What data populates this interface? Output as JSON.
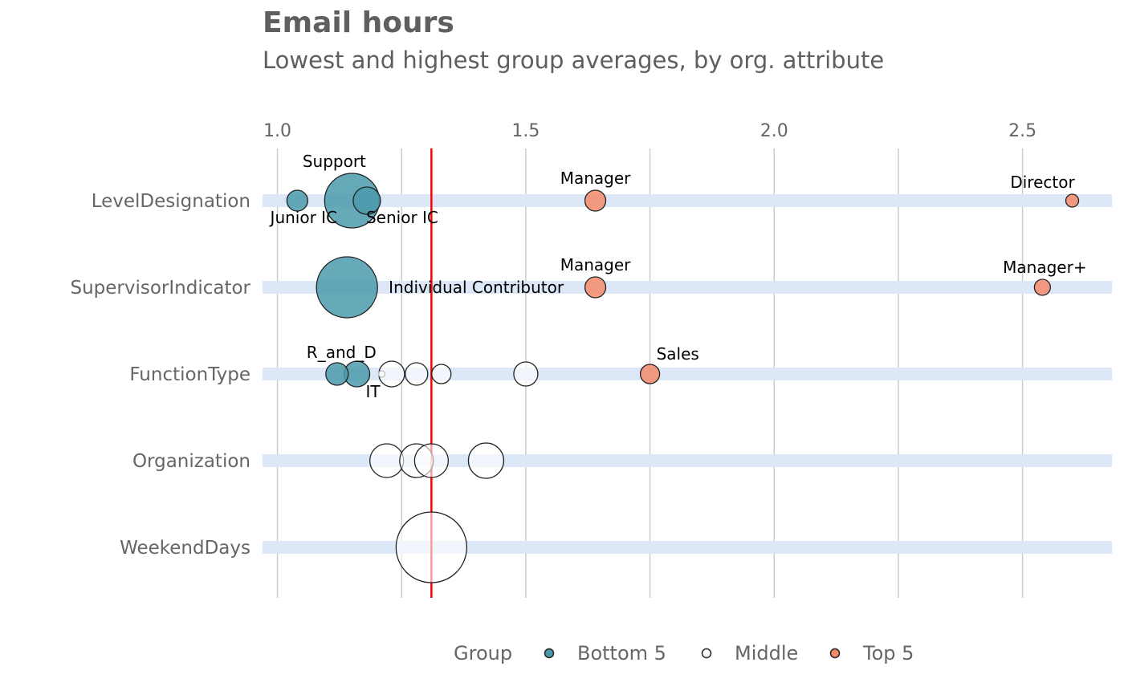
{
  "chart_data": {
    "type": "scatter",
    "title": "Email hours",
    "subtitle": "Lowest and highest group averages, by org. attribute",
    "xlim": [
      0.97,
      2.68
    ],
    "x_ticks": [
      1.0,
      1.5,
      2.0,
      2.5
    ],
    "x_tick_labels": [
      "1.0",
      "1.5",
      "2.0",
      "2.5"
    ],
    "grid": true,
    "reference_line": 1.31,
    "reference_color": "#ff0000",
    "categories": [
      "LevelDesignation",
      "SupervisorIndicator",
      "FunctionType",
      "Organization",
      "WeekendDays"
    ],
    "legend": {
      "title": "Group",
      "position": "bottom",
      "items": [
        {
          "label": "Bottom 5",
          "color": "#4b9aab"
        },
        {
          "label": "Middle",
          "color": "#ffffff"
        },
        {
          "label": "Top 5",
          "color": "#f58a6b"
        }
      ]
    },
    "colors": {
      "Bottom 5": "#4b9aab",
      "Middle": "#ffffff",
      "Top 5": "#f58a6b",
      "band": "#dce8f7"
    },
    "points": [
      {
        "category": "LevelDesignation",
        "x": 1.04,
        "size": 13,
        "group": "Bottom 5",
        "label": "Junior IC",
        "label_pos": "below"
      },
      {
        "category": "LevelDesignation",
        "x": 1.15,
        "size": 34,
        "group": "Bottom 5",
        "label": "Support",
        "label_pos": "above"
      },
      {
        "category": "LevelDesignation",
        "x": 1.18,
        "size": 17,
        "group": "Bottom 5",
        "label": "Senior IC",
        "label_pos": "below-right"
      },
      {
        "category": "LevelDesignation",
        "x": 1.64,
        "size": 13,
        "group": "Top 5",
        "label": "Manager",
        "label_pos": "above"
      },
      {
        "category": "LevelDesignation",
        "x": 2.6,
        "size": 8,
        "group": "Top 5",
        "label": "Director",
        "label_pos": "above"
      },
      {
        "category": "SupervisorIndicator",
        "x": 1.14,
        "size": 38,
        "group": "Bottom 5",
        "label": "Individual Contributor",
        "label_pos": "right"
      },
      {
        "category": "SupervisorIndicator",
        "x": 1.64,
        "size": 13,
        "group": "Top 5",
        "label": "Manager",
        "label_pos": "above"
      },
      {
        "category": "SupervisorIndicator",
        "x": 2.54,
        "size": 10,
        "group": "Top 5",
        "label": "Manager+",
        "label_pos": "above"
      },
      {
        "category": "FunctionType",
        "x": 1.12,
        "size": 14,
        "group": "Bottom 5",
        "label": "R_and_D",
        "label_pos": "above-left"
      },
      {
        "category": "FunctionType",
        "x": 1.16,
        "size": 16,
        "group": "Bottom 5",
        "label": "IT",
        "label_pos": "below-right"
      },
      {
        "category": "FunctionType",
        "x": 1.21,
        "size": 4,
        "group": "Middle",
        "label": "",
        "label_pos": ""
      },
      {
        "category": "FunctionType",
        "x": 1.23,
        "size": 16,
        "group": "Middle",
        "label": "",
        "label_pos": ""
      },
      {
        "category": "FunctionType",
        "x": 1.28,
        "size": 14,
        "group": "Middle",
        "label": "",
        "label_pos": ""
      },
      {
        "category": "FunctionType",
        "x": 1.33,
        "size": 12,
        "group": "Middle",
        "label": "",
        "label_pos": ""
      },
      {
        "category": "FunctionType",
        "x": 1.5,
        "size": 15,
        "group": "Middle",
        "label": "",
        "label_pos": ""
      },
      {
        "category": "FunctionType",
        "x": 1.75,
        "size": 12,
        "group": "Top 5",
        "label": "Sales",
        "label_pos": "above-right"
      },
      {
        "category": "Organization",
        "x": 1.22,
        "size": 21,
        "group": "Middle",
        "label": "",
        "label_pos": ""
      },
      {
        "category": "Organization",
        "x": 1.28,
        "size": 21,
        "group": "Middle",
        "label": "",
        "label_pos": ""
      },
      {
        "category": "Organization",
        "x": 1.31,
        "size": 21,
        "group": "Middle",
        "label": "",
        "label_pos": ""
      },
      {
        "category": "Organization",
        "x": 1.42,
        "size": 22,
        "group": "Middle",
        "label": "",
        "label_pos": ""
      },
      {
        "category": "WeekendDays",
        "x": 1.31,
        "size": 44,
        "group": "Middle",
        "label": "",
        "label_pos": ""
      }
    ]
  }
}
